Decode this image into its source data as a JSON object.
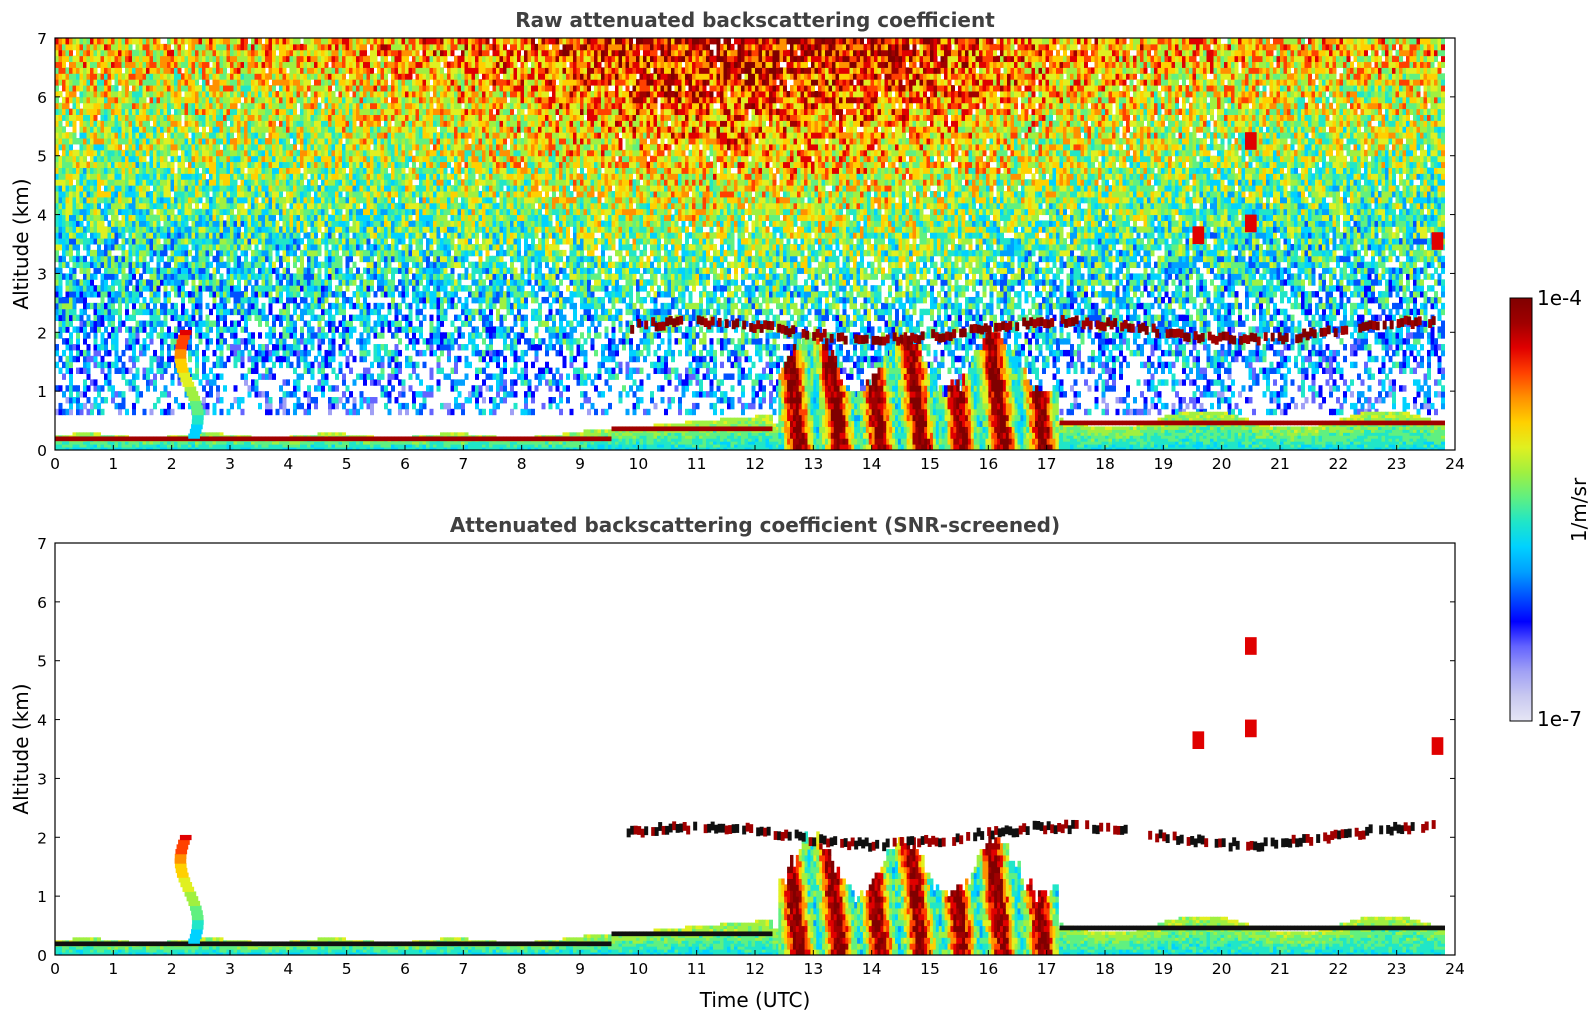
{
  "chart_data": [
    {
      "type": "heatmap",
      "title": "Raw attenuated backscattering coefficient",
      "xlabel": "",
      "ylabel": "Altitude (km)",
      "xlim": [
        0,
        24
      ],
      "ylim": [
        0,
        7
      ],
      "xticks": [
        "0",
        "1",
        "2",
        "3",
        "4",
        "5",
        "6",
        "7",
        "8",
        "9",
        "10",
        "11",
        "12",
        "13",
        "14",
        "15",
        "16",
        "17",
        "18",
        "19",
        "20",
        "21",
        "22",
        "23",
        "24"
      ],
      "yticks": [
        "0",
        "1",
        "2",
        "3",
        "4",
        "5",
        "6",
        "7"
      ],
      "data_end_hour": 23.8,
      "features": [
        {
          "name": "surface aerosol layer",
          "x_range": [
            0,
            23.8
          ],
          "altitude_top_km": [
            0.15,
            0.7
          ],
          "level": "high"
        },
        {
          "name": "convective boundary layer",
          "x_range": [
            12.4,
            17.2
          ],
          "altitude_top_km": 2.2,
          "level": "high"
        },
        {
          "name": "aerosol/cloud layer ~2 km",
          "x_range": [
            9.8,
            23.6
          ],
          "altitude_km": [
            1.6,
            2.1
          ],
          "level": "high"
        },
        {
          "name": "plume near 2.3 h",
          "x_range": [
            2.0,
            2.6
          ],
          "altitude_top_km": 2.0,
          "level": "medium"
        },
        {
          "name": "elevated layer ~3.5 km",
          "x_range": [
            19.4,
            23.8
          ],
          "altitude_km": [
            3.3,
            4.2
          ],
          "level": "high"
        },
        {
          "name": "sky noise",
          "x_range": [
            0,
            23.8
          ],
          "altitude_km": [
            0.8,
            7
          ],
          "level": "noise"
        }
      ]
    },
    {
      "type": "heatmap",
      "title": "Attenuated backscattering coefficient (SNR-screened)",
      "xlabel": "Time (UTC)",
      "ylabel": "Altitude (km)",
      "xlim": [
        0,
        24
      ],
      "ylim": [
        0,
        7
      ],
      "xticks": [
        "0",
        "1",
        "2",
        "3",
        "4",
        "5",
        "6",
        "7",
        "8",
        "9",
        "10",
        "11",
        "12",
        "13",
        "14",
        "15",
        "16",
        "17",
        "18",
        "19",
        "20",
        "21",
        "22",
        "23",
        "24"
      ],
      "yticks": [
        "0",
        "1",
        "2",
        "3",
        "4",
        "5",
        "6",
        "7"
      ],
      "data_end_hour": 23.8,
      "features": [
        {
          "name": "surface aerosol layer",
          "x_range": [
            0,
            23.8
          ],
          "altitude_top_km": [
            0.15,
            0.7
          ],
          "level": "high"
        },
        {
          "name": "convective boundary layer",
          "x_range": [
            12.4,
            17.2
          ],
          "altitude_top_km": 2.2,
          "level": "high"
        },
        {
          "name": "aerosol/cloud layer ~2 km",
          "x_range": [
            9.8,
            23.6
          ],
          "altitude_km": [
            1.6,
            2.1
          ],
          "level": "high"
        },
        {
          "name": "elevated layer ~3.5 km",
          "x_range": [
            19.4,
            23.8
          ],
          "altitude_km": [
            3.3,
            4.2
          ],
          "level": "high"
        }
      ]
    }
  ],
  "colorbar": {
    "label": "1/m/sr",
    "max_label": "1e-4",
    "min_label": "1e-7",
    "colors": [
      "#e6e6f5",
      "#c8c8f0",
      "#a0a0f5",
      "#6464ff",
      "#0000ff",
      "#0050ff",
      "#00a0ff",
      "#00d2ff",
      "#20e6c8",
      "#60f080",
      "#a0f040",
      "#e0f020",
      "#ffd000",
      "#ff9000",
      "#ff4000",
      "#e00000",
      "#a00000",
      "#800000"
    ]
  }
}
